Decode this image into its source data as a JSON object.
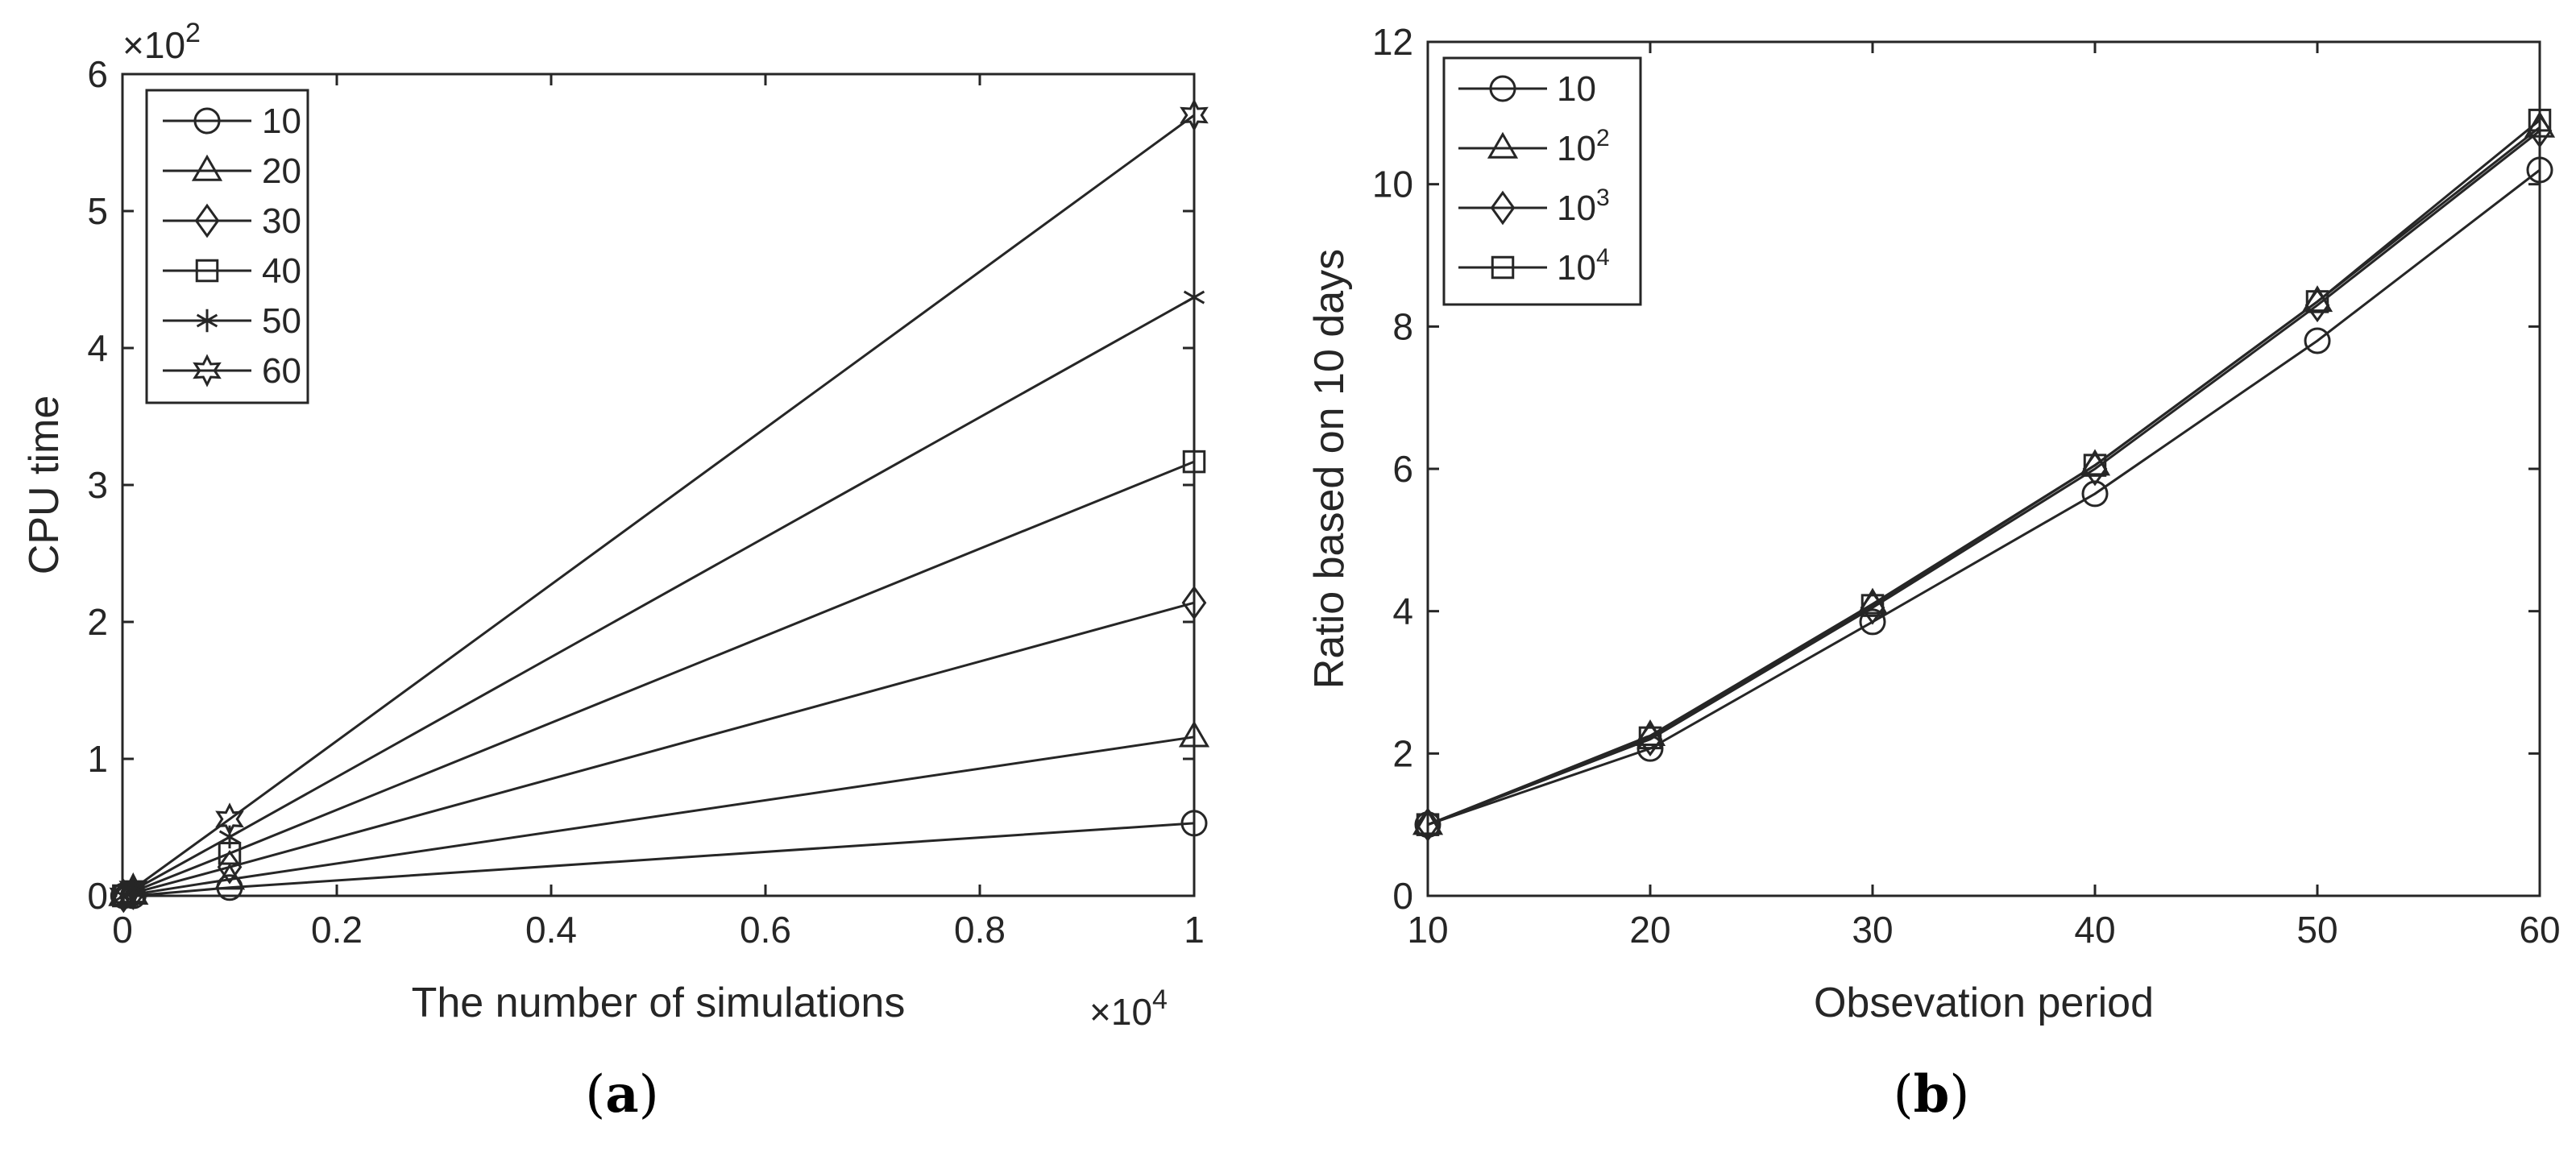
{
  "figure_captions": {
    "a": {
      "open": "(",
      "letter": "a",
      "close": ")"
    },
    "b": {
      "open": "(",
      "letter": "b",
      "close": ")"
    }
  },
  "chart_data": [
    {
      "id": "a",
      "type": "line",
      "title": "",
      "xlabel": "The number of simulations",
      "ylabel": "CPU time",
      "x_scale_label": {
        "base": "×10",
        "exp": "4"
      },
      "y_scale_label": {
        "base": "×10",
        "exp": "2"
      },
      "xlim": [
        0,
        1
      ],
      "ylim": [
        0,
        6
      ],
      "xticks": [
        0,
        0.2,
        0.4,
        0.6,
        0.8,
        1
      ],
      "xtick_labels": [
        "0",
        "0.2",
        "0.4",
        "0.6",
        "0.8",
        "1"
      ],
      "yticks": [
        0,
        1,
        2,
        3,
        4,
        5,
        6
      ],
      "ytick_labels": [
        "0",
        "1",
        "2",
        "3",
        "4",
        "5",
        "6"
      ],
      "grid": false,
      "legend_position": "top-left",
      "x": [
        0.001,
        0.01,
        0.1,
        1
      ],
      "series": [
        {
          "name": "10",
          "marker": "circle",
          "values": [
            0.0,
            0.0,
            0.06,
            0.53
          ]
        },
        {
          "name": "20",
          "marker": "triangle",
          "values": [
            0.0,
            0.01,
            0.12,
            1.16
          ]
        },
        {
          "name": "30",
          "marker": "diamond",
          "values": [
            0.0,
            0.02,
            0.21,
            2.14
          ]
        },
        {
          "name": "40",
          "marker": "square",
          "values": [
            0.0,
            0.03,
            0.31,
            3.17
          ]
        },
        {
          "name": "50",
          "marker": "asterisk",
          "values": [
            0.0,
            0.04,
            0.43,
            4.37
          ]
        },
        {
          "name": "60",
          "marker": "hexagram",
          "values": [
            0.0,
            0.05,
            0.56,
            5.7
          ]
        }
      ]
    },
    {
      "id": "b",
      "type": "line",
      "title": "",
      "xlabel": "Obsevation period",
      "ylabel": "Ratio based on 10 days",
      "xlim": [
        10,
        60
      ],
      "ylim": [
        0,
        12
      ],
      "xticks": [
        10,
        20,
        30,
        40,
        50,
        60
      ],
      "xtick_labels": [
        "10",
        "20",
        "30",
        "40",
        "50",
        "60"
      ],
      "yticks": [
        0,
        2,
        4,
        6,
        8,
        10,
        12
      ],
      "ytick_labels": [
        "0",
        "2",
        "4",
        "6",
        "8",
        "10",
        "12"
      ],
      "grid": false,
      "legend_position": "top-left",
      "x": [
        10,
        20,
        30,
        40,
        50,
        60
      ],
      "series": [
        {
          "name": "10",
          "name_base": "10",
          "name_exp": "",
          "marker": "circle",
          "values": [
            1.0,
            2.07,
            3.85,
            5.65,
            7.8,
            10.2
          ]
        },
        {
          "name": "10^2",
          "name_base": "10",
          "name_exp": "2",
          "marker": "triangle",
          "values": [
            1.0,
            2.25,
            4.1,
            6.05,
            8.35,
            10.8
          ]
        },
        {
          "name": "10^3",
          "name_base": "10",
          "name_exp": "3",
          "marker": "diamond",
          "values": [
            1.0,
            2.2,
            4.05,
            6.0,
            8.3,
            10.75
          ]
        },
        {
          "name": "10^4",
          "name_base": "10",
          "name_exp": "4",
          "marker": "square",
          "values": [
            1.0,
            2.22,
            4.08,
            6.05,
            8.35,
            10.9
          ]
        }
      ]
    }
  ]
}
